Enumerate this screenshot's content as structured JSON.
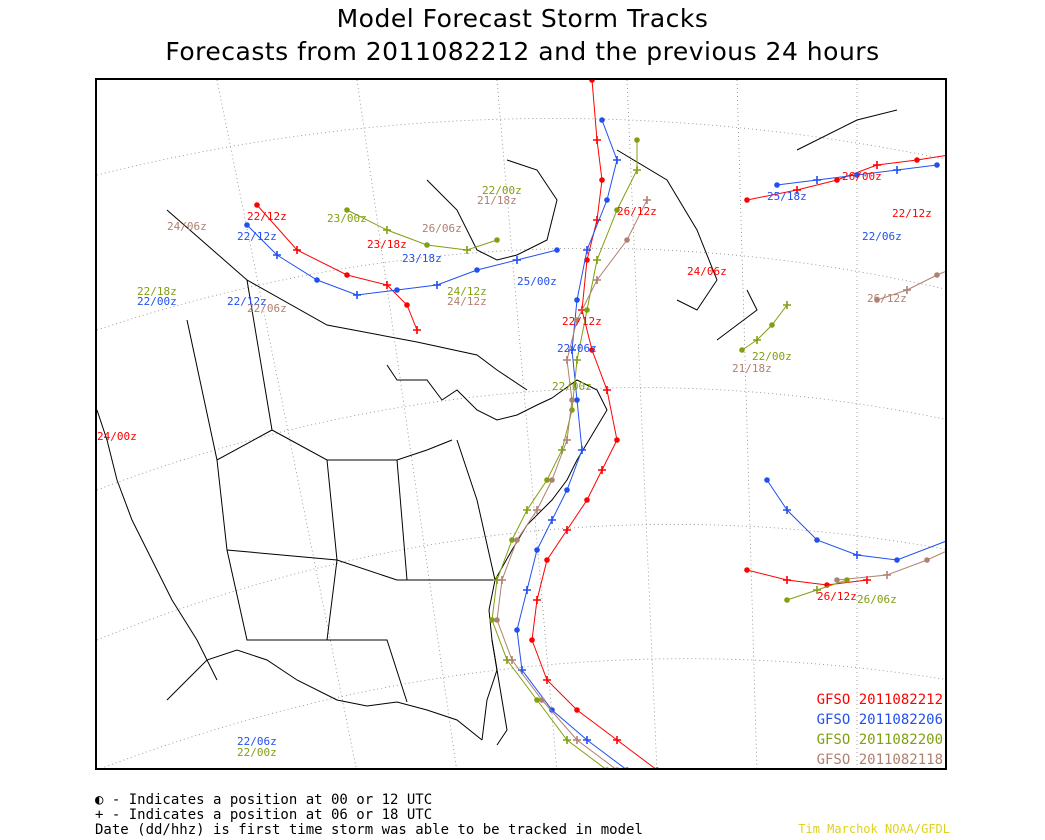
{
  "title": {
    "line1": "Model Forecast Storm Tracks",
    "line2": "Forecasts from 2011082212 and the previous 24 hours"
  },
  "legend": [
    {
      "label": "GFSO 2011082212",
      "color": "#ff0000"
    },
    {
      "label": "GFSO 2011082206",
      "color": "#2050f0"
    },
    {
      "label": "GFSO 2011082200",
      "color": "#80a010"
    },
    {
      "label": "GFSO 2011082118",
      "color": "#b08070"
    }
  ],
  "notes": {
    "line1": "◐ - Indicates a position at 00 or 12 UTC",
    "line2": "+ - Indicates a position at 06 or 18 UTC",
    "line3": "Date (dd/hhz) is first time storm was able to be tracked in model"
  },
  "credit": "Tim Marchok NOAA/GFDL",
  "track_labels": [
    {
      "text": "22/12z",
      "color": "#ff0000"
    },
    {
      "text": "22/12z",
      "color": "#2050f0"
    },
    {
      "text": "24/06z",
      "color": "#b08070"
    },
    {
      "text": "23/00z",
      "color": "#80a010"
    },
    {
      "text": "22/12z",
      "color": "#2050f0"
    },
    {
      "text": "22/00z",
      "color": "#2050f0"
    },
    {
      "text": "22/06z",
      "color": "#b08070"
    },
    {
      "text": "24/00z",
      "color": "#ff0000"
    },
    {
      "text": "22/18z",
      "color": "#80a010"
    },
    {
      "text": "23/18z",
      "color": "#ff0000"
    },
    {
      "text": "23/18z",
      "color": "#2050f0"
    },
    {
      "text": "26/06z",
      "color": "#b08070"
    },
    {
      "text": "24/12z",
      "color": "#80a010"
    },
    {
      "text": "24/12z",
      "color": "#b08070"
    },
    {
      "text": "25/00z",
      "color": "#2050f0"
    },
    {
      "text": "21/18z",
      "color": "#b08070"
    },
    {
      "text": "22/00z",
      "color": "#80a010"
    },
    {
      "text": "26/12z",
      "color": "#ff0000"
    },
    {
      "text": "24/06z",
      "color": "#ff0000"
    },
    {
      "text": "22/12z",
      "color": "#ff0000"
    },
    {
      "text": "22/06z",
      "color": "#2050f0"
    },
    {
      "text": "22/00z",
      "color": "#80a010"
    },
    {
      "text": "22/00z",
      "color": "#80a010"
    },
    {
      "text": "21/18z",
      "color": "#b08070"
    },
    {
      "text": "26/00z",
      "color": "#ff0000"
    },
    {
      "text": "25/18z",
      "color": "#2050f0"
    },
    {
      "text": "22/12z",
      "color": "#ff0000"
    },
    {
      "text": "22/06z",
      "color": "#2050f0"
    },
    {
      "text": "26/12z",
      "color": "#b08070"
    },
    {
      "text": "26/12z",
      "color": "#ff0000"
    },
    {
      "text": "26/06z",
      "color": "#80a010"
    },
    {
      "text": "22/06z",
      "color": "#2050f0"
    },
    {
      "text": "22/00z",
      "color": "#80a010"
    }
  ]
}
